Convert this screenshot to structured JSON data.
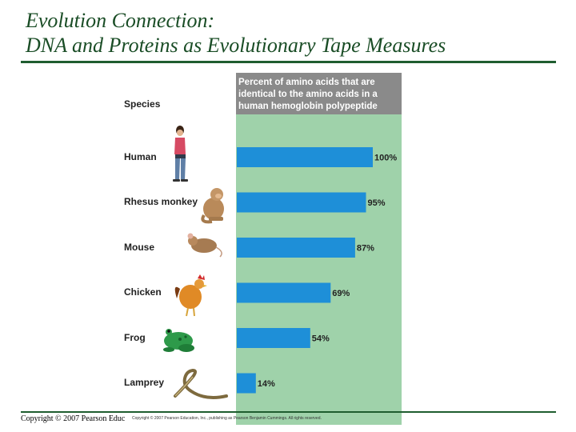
{
  "slide": {
    "title_line1": "Evolution Connection:",
    "title_line2": "DNA and Proteins as Evolutionary Tape Measures",
    "footer": "Copyright © 2007 Pearson Educ",
    "figure_credit": "Copyright © 2007 Pearson Education, Inc., publishing as Pearson Benjamin Cummings. All rights reserved."
  },
  "colors": {
    "title": "#1a4d26",
    "rule": "#1f5d2f",
    "panel_green": "#9fd2aa",
    "bar_blue": "#1e8fd8",
    "header_gray": "#8a8a8a"
  },
  "chart_data": {
    "type": "bar",
    "orientation": "horizontal",
    "column_header": "Species",
    "value_header_lines": [
      "Percent of amino acids that are",
      "identical to the amino acids in a",
      "human hemoglobin polypeptide"
    ],
    "categories": [
      "Human",
      "Rhesus monkey",
      "Mouse",
      "Chicken",
      "Frog",
      "Lamprey"
    ],
    "values": [
      100,
      95,
      87,
      69,
      54,
      14
    ],
    "value_labels": [
      "100%",
      "95%",
      "87%",
      "69%",
      "54%",
      "14%"
    ],
    "xlim": [
      0,
      100
    ],
    "icons": [
      "human-icon",
      "monkey-icon",
      "mouse-icon",
      "chicken-icon",
      "frog-icon",
      "lamprey-icon"
    ],
    "grid": false,
    "legend": "none"
  }
}
